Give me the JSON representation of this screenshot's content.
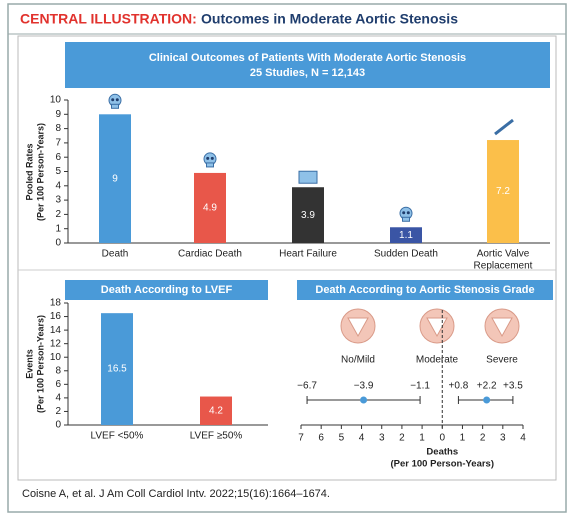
{
  "header": {
    "label": "CENTRAL ILLUSTRATION:",
    "title": "Outcomes in Moderate Aortic Stenosis"
  },
  "citation": "Coisne A, et al. J Am Coll Cardiol Intv. 2022;15(16):1664–1674.",
  "chart_data": [
    {
      "type": "bar",
      "title": "Clinical Outcomes of Patients With Moderate Aortic Stenosis",
      "subtitle": "25 Studies, N = 12,143",
      "y_label": [
        "Pooled Rates",
        "(Per 100 Person-Years)"
      ],
      "categories": [
        [
          "Death"
        ],
        [
          "Cardiac Death"
        ],
        [
          "Heart Failure"
        ],
        [
          "Sudden Death"
        ],
        [
          "Aortic Valve",
          "Replacement"
        ]
      ],
      "values": [
        9,
        4.9,
        3.9,
        1.1,
        7.2
      ],
      "colors": [
        "#4a9ad8",
        "#e8574a",
        "#333333",
        "#3a55a5",
        "#fbbf4a"
      ],
      "ylim": [
        0,
        10
      ],
      "yticks": [
        0,
        1,
        2,
        3,
        4,
        5,
        6,
        7,
        8,
        9,
        10
      ]
    },
    {
      "type": "bar",
      "title": "Death According to LVEF",
      "y_label": [
        "Events",
        "(Per 100 Person-Years)"
      ],
      "categories": [
        [
          "LVEF <50%"
        ],
        [
          "LVEF ≥50%"
        ]
      ],
      "values": [
        16.5,
        4.2
      ],
      "colors": [
        "#4a9ad8",
        "#e8574a"
      ],
      "ylim": [
        0,
        18
      ],
      "yticks": [
        0,
        2,
        4,
        6,
        8,
        10,
        12,
        14,
        16,
        18
      ]
    },
    {
      "type": "forest",
      "title": "Death According to Aortic Stenosis Grade",
      "groups": [
        "No/Mild",
        "Moderate",
        "Severe"
      ],
      "estimates": [
        {
          "values": [
            -6.7,
            -3.9,
            -1.1
          ],
          "value_labels": [
            "−6.7",
            "−3.9",
            "−1.1"
          ]
        },
        {
          "values": [
            0.8,
            2.2,
            3.5
          ],
          "value_labels": [
            "+0.8",
            "+2.2",
            "+3.5"
          ]
        }
      ],
      "color": "#4a9ad8",
      "x_label": [
        "Deaths",
        "(Per 100 Person-Years)"
      ],
      "xlim": [
        -7,
        4
      ],
      "xticks": [
        {
          "value": -7,
          "label": "7"
        },
        {
          "value": -6,
          "label": "6"
        },
        {
          "value": -5,
          "label": "5"
        },
        {
          "value": -4,
          "label": "4"
        },
        {
          "value": -3,
          "label": "3"
        },
        {
          "value": -2,
          "label": "2"
        },
        {
          "value": -1,
          "label": "1"
        },
        0,
        1,
        2,
        3,
        4
      ]
    }
  ]
}
